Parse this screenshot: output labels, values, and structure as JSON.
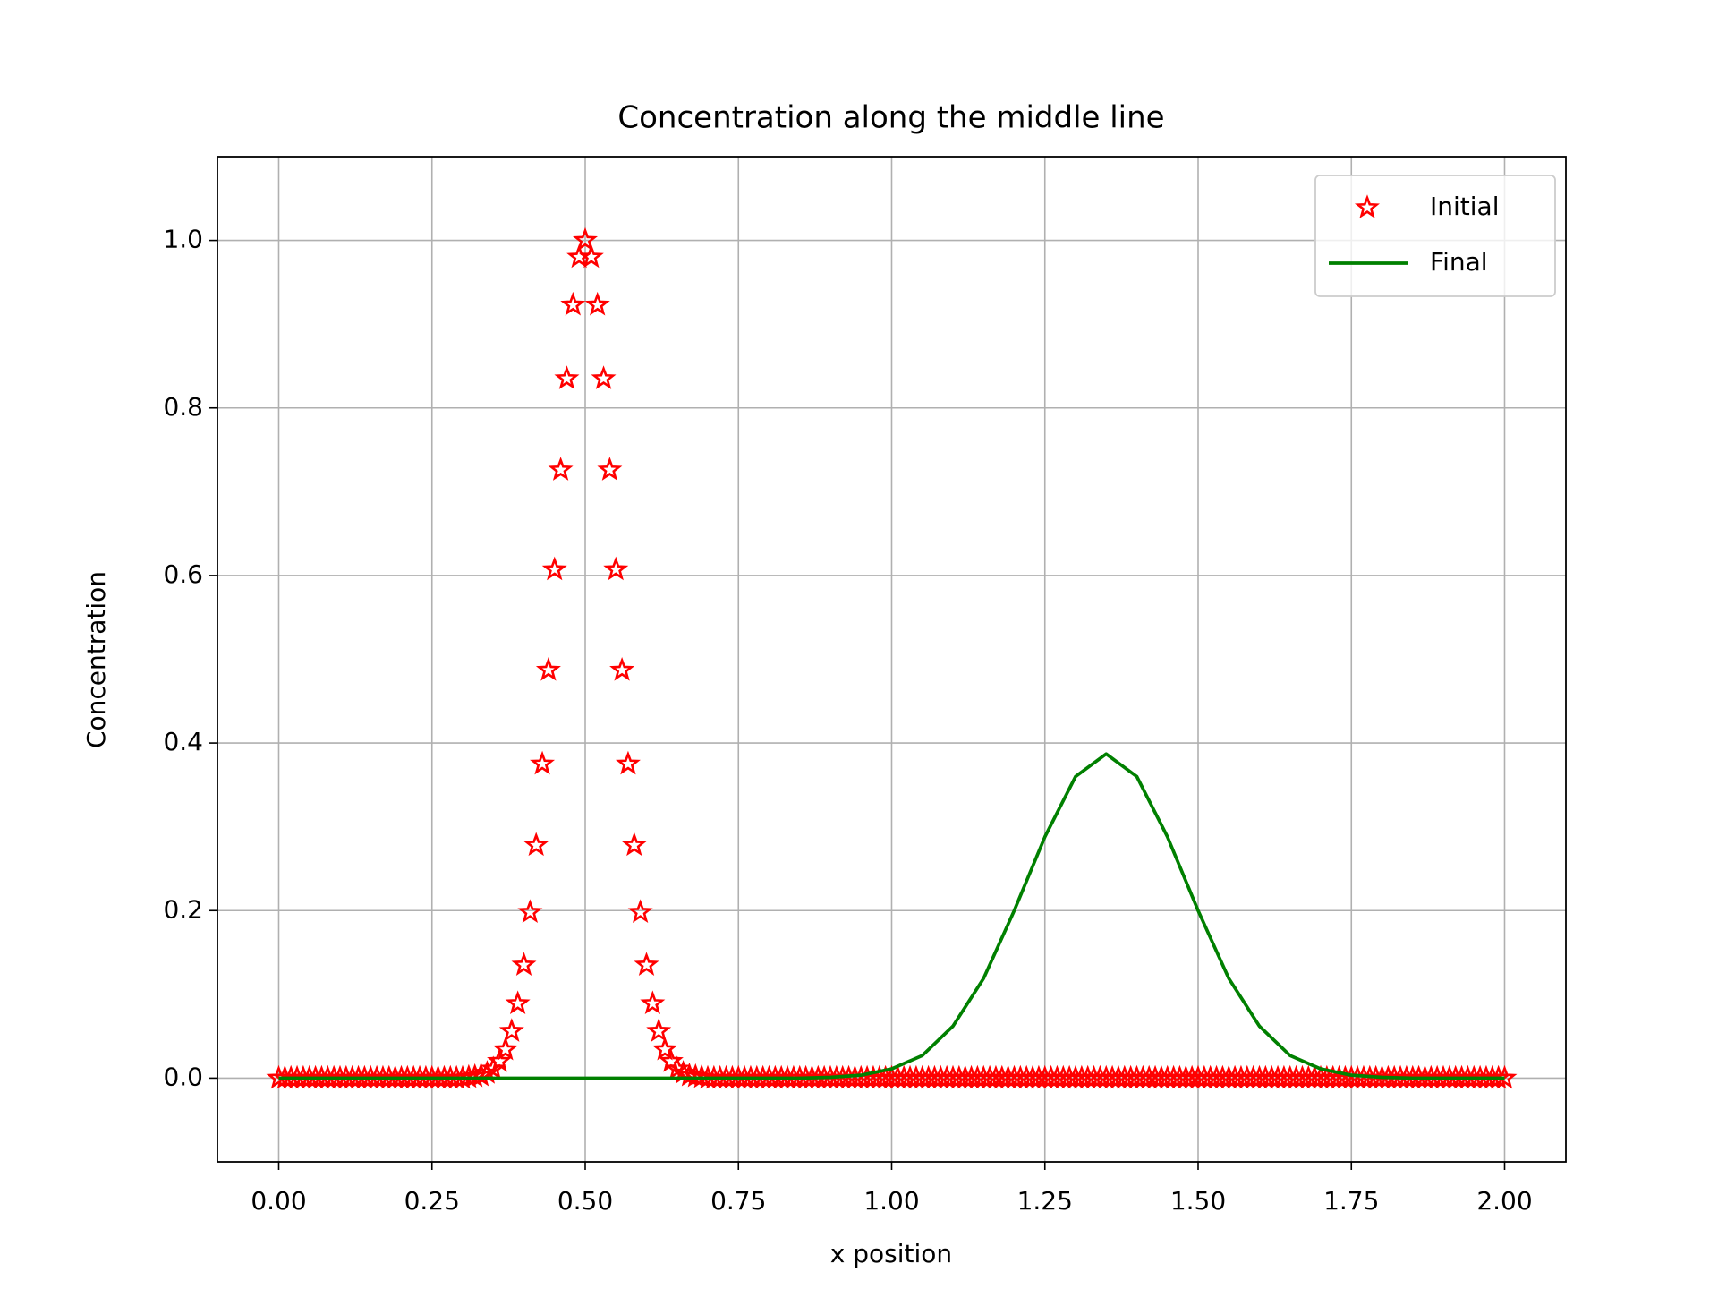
{
  "chart_data": {
    "type": "line",
    "title": "Concentration along the middle line",
    "x_label": "x position",
    "y_label": "Concentration",
    "xlim": [
      -0.1,
      2.1
    ],
    "ylim": [
      -0.1,
      1.1
    ],
    "grid": true,
    "legend": "upper right",
    "xticks": [
      {
        "value": 0,
        "label": "0.00"
      },
      {
        "value": 0.25,
        "label": "0.25"
      },
      {
        "value": 0.5,
        "label": "0.50"
      },
      {
        "value": 0.75,
        "label": "0.75"
      },
      {
        "value": 1,
        "label": "1.00"
      },
      {
        "value": 1.25,
        "label": "1.25"
      },
      {
        "value": 1.5,
        "label": "1.50"
      },
      {
        "value": 1.75,
        "label": "1.75"
      },
      {
        "value": 2,
        "label": "2.00"
      }
    ],
    "yticks": [
      {
        "value": 0,
        "label": "0.0"
      },
      0.2,
      0.4,
      0.6,
      0.8,
      {
        "value": 1,
        "label": "1.0"
      }
    ],
    "series": [
      {
        "name": "Initial",
        "color": "#ff0000",
        "marker": "star",
        "x": [
          0,
          0.01,
          0.02,
          0.03,
          0.04,
          0.05,
          0.06,
          0.07,
          0.08,
          0.09,
          0.1,
          0.11,
          0.12,
          0.13,
          0.14,
          0.15,
          0.16,
          0.17,
          0.18,
          0.19,
          0.2,
          0.21,
          0.22,
          0.23,
          0.24,
          0.25,
          0.26,
          0.27,
          0.28,
          0.29,
          0.3,
          0.31,
          0.32,
          0.33,
          0.34,
          0.35,
          0.36,
          0.37,
          0.38,
          0.39,
          0.4,
          0.41,
          0.42,
          0.43,
          0.44,
          0.45,
          0.46,
          0.47,
          0.48,
          0.49,
          0.5,
          0.51,
          0.52,
          0.53,
          0.54,
          0.55,
          0.56,
          0.57,
          0.58,
          0.59,
          0.6,
          0.61,
          0.62,
          0.63,
          0.64,
          0.65,
          0.66,
          0.67,
          0.68,
          0.69,
          0.7,
          0.71,
          0.72,
          0.73,
          0.74,
          0.75,
          0.76,
          0.77,
          0.78,
          0.79,
          0.8,
          0.81,
          0.82,
          0.83,
          0.84,
          0.85,
          0.86,
          0.87,
          0.88,
          0.89,
          0.9,
          0.91,
          0.92,
          0.93,
          0.94,
          0.95,
          0.96,
          0.97,
          0.98,
          0.99,
          1,
          1.01,
          1.02,
          1.03,
          1.04,
          1.05,
          1.06,
          1.07,
          1.08,
          1.09,
          1.1,
          1.11,
          1.12,
          1.13,
          1.14,
          1.15,
          1.16,
          1.17,
          1.18,
          1.19,
          1.2,
          1.21,
          1.22,
          1.23,
          1.24,
          1.25,
          1.26,
          1.27,
          1.28,
          1.29,
          1.3,
          1.31,
          1.32,
          1.33,
          1.34,
          1.35,
          1.36,
          1.37,
          1.38,
          1.39,
          1.4,
          1.41,
          1.42,
          1.43,
          1.44,
          1.45,
          1.46,
          1.47,
          1.48,
          1.49,
          1.5,
          1.51,
          1.52,
          1.53,
          1.54,
          1.55,
          1.56,
          1.57,
          1.58,
          1.59,
          1.6,
          1.61,
          1.62,
          1.63,
          1.64,
          1.65,
          1.66,
          1.67,
          1.68,
          1.69,
          1.7,
          1.71,
          1.72,
          1.73,
          1.74,
          1.75,
          1.76,
          1.77,
          1.78,
          1.79,
          1.8,
          1.81,
          1.82,
          1.83,
          1.84,
          1.85,
          1.86,
          1.87,
          1.88,
          1.89,
          1.9,
          1.91,
          1.92,
          1.93,
          1.94,
          1.95,
          1.96,
          1.97,
          1.98,
          1.99,
          2
        ],
        "values": [
          0,
          0,
          0,
          0,
          0,
          0,
          0,
          0,
          0,
          0,
          0,
          0,
          0,
          0,
          0,
          0,
          0,
          0,
          0,
          0,
          0,
          0,
          0,
          0,
          0,
          0,
          0,
          0,
          0,
          0,
          0,
          0.001,
          0.002,
          0.003,
          0.006,
          0.011,
          0.02,
          0.034,
          0.056,
          0.089,
          0.135,
          0.198,
          0.278,
          0.375,
          0.487,
          0.607,
          0.726,
          0.835,
          0.923,
          0.98,
          1,
          0.98,
          0.923,
          0.835,
          0.726,
          0.607,
          0.487,
          0.375,
          0.278,
          0.198,
          0.135,
          0.089,
          0.056,
          0.034,
          0.02,
          0.011,
          0.006,
          0.003,
          0.002,
          0.001,
          0,
          0,
          0,
          0,
          0,
          0,
          0,
          0,
          0,
          0,
          0,
          0,
          0,
          0,
          0,
          0,
          0,
          0,
          0,
          0,
          0,
          0,
          0,
          0,
          0,
          0,
          0,
          0,
          0,
          0,
          0,
          0,
          0,
          0,
          0,
          0,
          0,
          0,
          0,
          0,
          0,
          0,
          0,
          0,
          0,
          0,
          0,
          0,
          0,
          0,
          0,
          0,
          0,
          0,
          0,
          0,
          0,
          0,
          0,
          0,
          0,
          0,
          0,
          0,
          0,
          0,
          0,
          0,
          0,
          0,
          0,
          0,
          0,
          0,
          0,
          0,
          0,
          0,
          0,
          0,
          0,
          0,
          0,
          0,
          0,
          0,
          0,
          0,
          0,
          0,
          0,
          0,
          0,
          0,
          0,
          0,
          0,
          0,
          0,
          0,
          0,
          0,
          0,
          0,
          0,
          0,
          0,
          0,
          0,
          0,
          0,
          0,
          0,
          0,
          0,
          0,
          0,
          0,
          0,
          0,
          0,
          0,
          0,
          0,
          0,
          0,
          0,
          0,
          0,
          0,
          0
        ]
      },
      {
        "name": "Final",
        "color": "#008000",
        "marker": "none",
        "x": [
          0,
          0.05,
          0.1,
          0.15,
          0.2,
          0.25,
          0.3,
          0.35,
          0.4,
          0.45,
          0.5,
          0.55,
          0.6,
          0.65,
          0.7,
          0.75,
          0.8,
          0.85,
          0.9,
          0.95,
          1,
          1.05,
          1.1,
          1.15,
          1.2,
          1.25,
          1.3,
          1.35,
          1.4,
          1.45,
          1.5,
          1.55,
          1.6,
          1.65,
          1.7,
          1.75,
          1.8,
          1.85,
          1.9,
          1.95,
          2
        ],
        "values": [
          0,
          0,
          0,
          0,
          0,
          0,
          0,
          0,
          0,
          0,
          0,
          0,
          0,
          0,
          0,
          0,
          0,
          0,
          0.001,
          0.0035,
          0.011,
          0.027,
          0.062,
          0.119,
          0.2,
          0.288,
          0.36,
          0.387,
          0.36,
          0.288,
          0.2,
          0.119,
          0.062,
          0.027,
          0.011,
          0.0035,
          0.001,
          0,
          0,
          0,
          0
        ]
      }
    ]
  }
}
